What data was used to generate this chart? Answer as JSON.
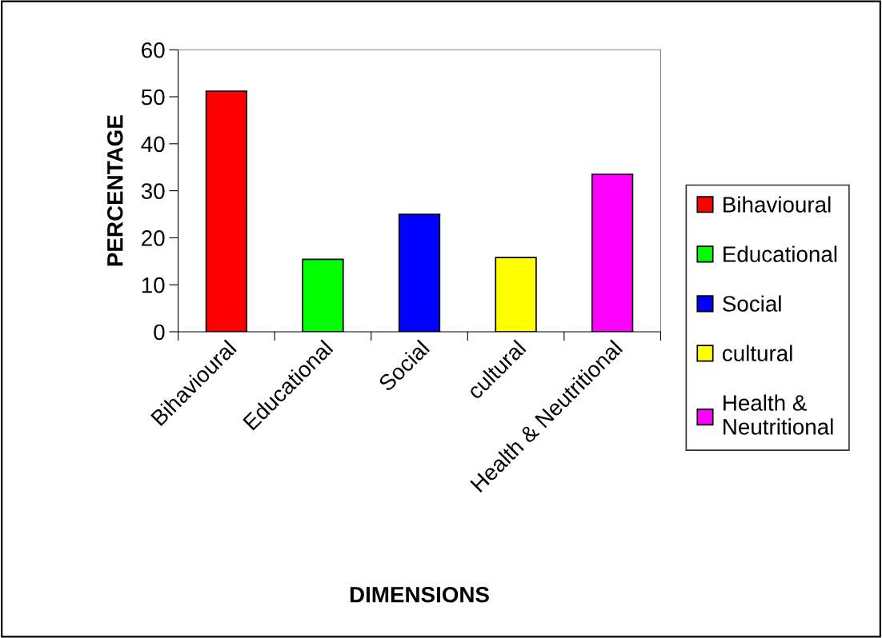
{
  "chart_data": {
    "type": "bar",
    "xlabel": "DIMENSIONS",
    "ylabel": "PERCENTAGE",
    "categories": [
      "Bihavioural",
      "Educational",
      "Social",
      "cultural",
      "Health & Neutritional"
    ],
    "series": [
      {
        "name": "Bihavioural",
        "color": "#ff0000",
        "values": [
          51.2,
          null,
          null,
          null,
          null
        ]
      },
      {
        "name": "Educational",
        "color": "#00ff00",
        "values": [
          null,
          15.4,
          null,
          null,
          null
        ]
      },
      {
        "name": "Social",
        "color": "#0000ff",
        "values": [
          null,
          null,
          25.0,
          null,
          null
        ]
      },
      {
        "name": "cultural",
        "color": "#ffff00",
        "values": [
          null,
          null,
          null,
          15.8,
          null
        ]
      },
      {
        "name": "Health & Neutritional",
        "color": "#ff00ff",
        "values": [
          null,
          null,
          null,
          null,
          33.5
        ]
      }
    ],
    "ylim": [
      0,
      60
    ],
    "yticks": [
      0,
      10,
      20,
      30,
      40,
      50,
      60
    ],
    "grid": false,
    "legend": "right"
  }
}
